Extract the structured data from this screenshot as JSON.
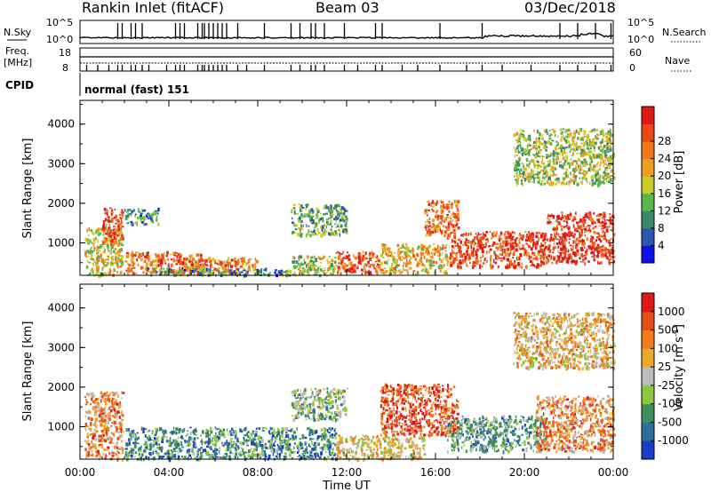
{
  "header": {
    "station": "Rankin Inlet (fitACF)",
    "beam": "Beam 03",
    "date": "03/Dec/2018"
  },
  "panels": {
    "nsky_label": "N.Sky",
    "nsearch_label": "N.Search",
    "nsky_ticks": [
      "10^5",
      "10^0"
    ],
    "nsearch_ticks": [
      "10^5",
      "10^0"
    ],
    "freq_label_1": "Freq.",
    "freq_label_2": "[MHz]",
    "freq_ticks": [
      "18",
      "8"
    ],
    "nave_label": "Nave",
    "nave_ticks": [
      "60",
      "0"
    ],
    "cpid_label": "CPID",
    "cpid_text": "normal (fast) 151"
  },
  "chart_data": [
    {
      "type": "heatmap",
      "name": "power",
      "xlabel": "Time UT",
      "ylabel": "Slant Range [km]",
      "x_ticks": [
        "00:00",
        "04:00",
        "08:00",
        "12:00",
        "16:00",
        "20:00",
        "00:00"
      ],
      "y_ticks": [
        1000,
        2000,
        3000,
        4000
      ],
      "ylim": [
        180,
        4600
      ],
      "xlim_hours": [
        0,
        24
      ],
      "colorbar": {
        "label": "Power [dB]",
        "ticks": [
          "4",
          "8",
          "12",
          "16",
          "20",
          "24",
          "28"
        ],
        "colors": [
          "#1010ee",
          "#2a57b0",
          "#3b8a6a",
          "#56b84c",
          "#c8cc2a",
          "#f0a020",
          "#f07818",
          "#e84818",
          "#e01818"
        ]
      },
      "regions": [
        {
          "t": [
            0.2,
            1.9
          ],
          "r": [
            200,
            1400
          ],
          "level": 0.55
        },
        {
          "t": [
            1.0,
            1.9
          ],
          "r": [
            1000,
            1900
          ],
          "level": 0.85
        },
        {
          "t": [
            2.0,
            5.5
          ],
          "r": [
            250,
            800
          ],
          "level": 0.75
        },
        {
          "t": [
            4.5,
            8.0
          ],
          "r": [
            250,
            650
          ],
          "level": 0.7
        },
        {
          "t": [
            3.0,
            9.5
          ],
          "r": [
            200,
            380
          ],
          "level": 0.3
        },
        {
          "t": [
            9.5,
            11.5
          ],
          "r": [
            200,
            700
          ],
          "level": 0.45
        },
        {
          "t": [
            11.5,
            13.5
          ],
          "r": [
            250,
            800
          ],
          "level": 0.8
        },
        {
          "t": [
            13.5,
            16.5
          ],
          "r": [
            250,
            1000
          ],
          "level": 0.6
        },
        {
          "t": [
            15.5,
            17.0
          ],
          "r": [
            1200,
            2100
          ],
          "level": 0.75
        },
        {
          "t": [
            16.5,
            21.0
          ],
          "r": [
            400,
            1300
          ],
          "level": 0.85
        },
        {
          "t": [
            21.0,
            24.0
          ],
          "r": [
            500,
            1800
          ],
          "level": 0.9
        },
        {
          "t": [
            19.5,
            24.0
          ],
          "r": [
            2500,
            3900
          ],
          "level": 0.45
        },
        {
          "t": [
            9.5,
            12.0
          ],
          "r": [
            1200,
            2000
          ],
          "level": 0.35
        },
        {
          "t": [
            2.0,
            3.5
          ],
          "r": [
            1500,
            1900
          ],
          "level": 0.3
        }
      ]
    },
    {
      "type": "heatmap",
      "name": "velocity",
      "xlabel": "Time UT",
      "ylabel": "Slant Range [km]",
      "x_ticks": [
        "00:00",
        "04:00",
        "08:00",
        "12:00",
        "16:00",
        "20:00",
        "00:00"
      ],
      "y_ticks": [
        1000,
        2000,
        3000,
        4000
      ],
      "ylim": [
        180,
        4600
      ],
      "xlim_hours": [
        0,
        24
      ],
      "colorbar": {
        "label": "Velocity [m s^-1]",
        "ticks": [
          "1000",
          "500",
          "100",
          "25",
          "-25",
          "-100",
          "-500",
          "-1000"
        ],
        "colors": [
          "#1a3cc8",
          "#2e6f9a",
          "#3c8e5a",
          "#8cc83c",
          "#bcbcbc",
          "#f0a828",
          "#f07c1c",
          "#e84c18",
          "#e01818"
        ]
      },
      "regions": [
        {
          "t": [
            0.2,
            1.9
          ],
          "r": [
            200,
            1900
          ],
          "level": 0.7
        },
        {
          "t": [
            2.0,
            11.5
          ],
          "r": [
            200,
            1000
          ],
          "level": 0.25
        },
        {
          "t": [
            11.5,
            15.5
          ],
          "r": [
            200,
            800
          ],
          "level": 0.55
        },
        {
          "t": [
            13.5,
            17.0
          ],
          "r": [
            800,
            2100
          ],
          "level": 0.85
        },
        {
          "t": [
            16.5,
            21.0
          ],
          "r": [
            400,
            1300
          ],
          "level": 0.3
        },
        {
          "t": [
            20.5,
            24.0
          ],
          "r": [
            400,
            1800
          ],
          "level": 0.7
        },
        {
          "t": [
            19.5,
            24.0
          ],
          "r": [
            2500,
            3900
          ],
          "level": 0.6
        },
        {
          "t": [
            9.5,
            12.0
          ],
          "r": [
            1200,
            2000
          ],
          "level": 0.4
        }
      ]
    }
  ]
}
